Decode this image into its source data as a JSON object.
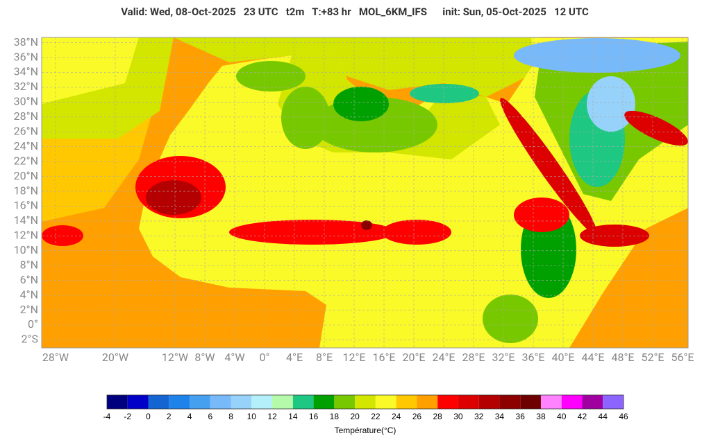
{
  "header": {
    "title": "Valid: Wed, 08-Oct-2025   23 UTC   t2m   T:+83 hr   MOL_6KM_IFS      init: Sun, 05-Oct-2025   12 UTC"
  },
  "map": {
    "lat_ticks": [
      {
        "value": 38,
        "label": "38°N"
      },
      {
        "value": 36,
        "label": "36°N"
      },
      {
        "value": 34,
        "label": "34°N"
      },
      {
        "value": 32,
        "label": "32°N"
      },
      {
        "value": 30,
        "label": "30°N"
      },
      {
        "value": 28,
        "label": "28°N"
      },
      {
        "value": 26,
        "label": "26°N"
      },
      {
        "value": 24,
        "label": "24°N"
      },
      {
        "value": 22,
        "label": "22°N"
      },
      {
        "value": 20,
        "label": "20°N"
      },
      {
        "value": 18,
        "label": "18°N"
      },
      {
        "value": 16,
        "label": "16°N"
      },
      {
        "value": 14,
        "label": "14°N"
      },
      {
        "value": 12,
        "label": "12°N"
      },
      {
        "value": 10,
        "label": "10°N"
      },
      {
        "value": 8,
        "label": "8°N"
      },
      {
        "value": 6,
        "label": "6°N"
      },
      {
        "value": 4,
        "label": "4°N"
      },
      {
        "value": 2,
        "label": "2°N"
      },
      {
        "value": 0,
        "label": "0°"
      },
      {
        "value": -2,
        "label": "2°S"
      }
    ],
    "lon_ticks": [
      {
        "value": -28,
        "label": "28°W"
      },
      {
        "value": -20,
        "label": "20°W"
      },
      {
        "value": -12,
        "label": "12°W"
      },
      {
        "value": -8,
        "label": "8°W"
      },
      {
        "value": -4,
        "label": "4°W"
      },
      {
        "value": 0,
        "label": "0°"
      },
      {
        "value": 4,
        "label": "4°E"
      },
      {
        "value": 8,
        "label": "8°E"
      },
      {
        "value": 12,
        "label": "12°E"
      },
      {
        "value": 16,
        "label": "16°E"
      },
      {
        "value": 20,
        "label": "20°E"
      },
      {
        "value": 24,
        "label": "24°E"
      },
      {
        "value": 28,
        "label": "28°E"
      },
      {
        "value": 32,
        "label": "32°E"
      },
      {
        "value": 36,
        "label": "36°E"
      },
      {
        "value": 40,
        "label": "40°E"
      },
      {
        "value": 44,
        "label": "44°E"
      },
      {
        "value": 48,
        "label": "48°E"
      },
      {
        "value": 52,
        "label": "52°E"
      },
      {
        "value": 56,
        "label": "56°E"
      }
    ]
  },
  "colorbar": {
    "title": "Température(°C)",
    "levels": [
      -4,
      -2,
      0,
      2,
      4,
      6,
      8,
      10,
      12,
      14,
      16,
      18,
      20,
      22,
      24,
      26,
      28,
      30,
      32,
      34,
      36,
      38,
      40,
      42,
      44,
      46
    ],
    "colors": [
      "#00007f",
      "#0000c8",
      "#1464d2",
      "#1e82eb",
      "#46a0f0",
      "#78b9fa",
      "#96d2fa",
      "#b4f0fa",
      "#b4faaa",
      "#1ec882",
      "#00a000",
      "#78c800",
      "#d2e600",
      "#fafa28",
      "#ffc800",
      "#ffa000",
      "#ff0000",
      "#dc0000",
      "#b40000",
      "#8c0000",
      "#6e0000",
      "#ff82ff",
      "#ff00ff",
      "#a000a0",
      "#8c64ff"
    ]
  }
}
